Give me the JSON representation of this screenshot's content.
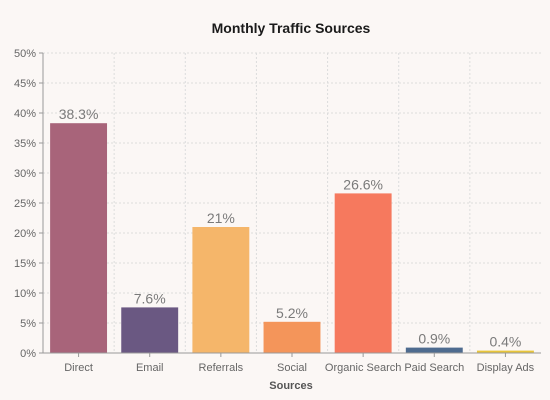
{
  "chart_data": {
    "type": "bar",
    "title": "Monthly Traffic Sources",
    "xlabel": "Sources",
    "ylabel": "",
    "ylim": [
      0,
      50
    ],
    "ytick_step": 5,
    "ytick_suffix": "%",
    "grid": true,
    "categories": [
      "Direct",
      "Email",
      "Referrals",
      "Social",
      "Organic Search",
      "Paid Search",
      "Display Ads"
    ],
    "values": [
      38.3,
      7.6,
      21,
      5.2,
      26.6,
      0.9,
      0.4
    ],
    "data_labels": [
      "38.3%",
      "7.6%",
      "21%",
      "5.2%",
      "26.6%",
      "0.9%",
      "0.4%"
    ],
    "colors": [
      "#a8647a",
      "#6a5882",
      "#f5b66a",
      "#f4955a",
      "#f6795e",
      "#4e6b8f",
      "#e8c53a"
    ]
  }
}
